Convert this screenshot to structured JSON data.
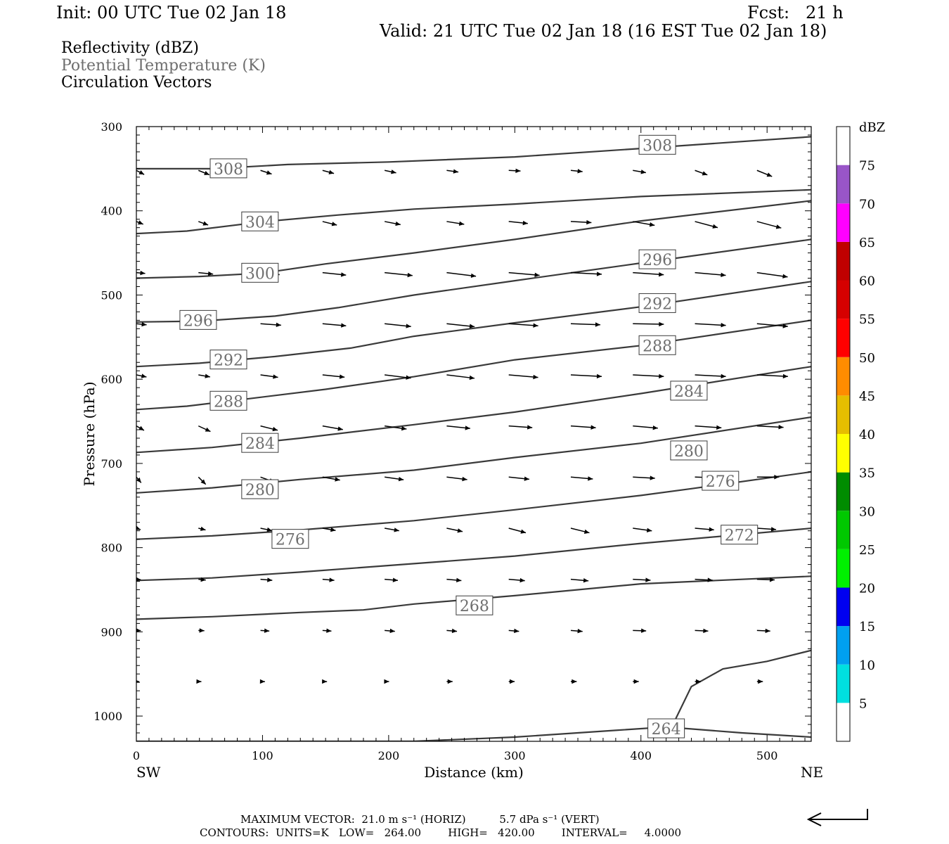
{
  "header": {
    "init": "Init: 00 UTC Tue 02 Jan 18",
    "fcst": "Fcst:   21 h",
    "valid": "Valid: 21 UTC Tue 02 Jan 18 (16 EST Tue 02 Jan 18)",
    "fields": [
      "Reflectivity (dBZ)",
      "Potential Temperature (K)",
      "Circulation Vectors"
    ]
  },
  "footer": {
    "max_vector": "MAXIMUM VECTOR:  21.0 m s⁻¹ (HORIZ)          5.7 dPa s⁻¹ (VERT)",
    "contours": "CONTOURS:  UNITS=K   LOW=   264.00        HIGH=   420.00        INTERVAL=     4.0000"
  },
  "colors": {
    "contour": "#3a3a3a",
    "vector": "#000000",
    "potential_temperature_label": "#6e6e6e"
  },
  "chart_data": {
    "type": "cross-section",
    "xlabel": "Distance (km)",
    "ylabel": "Pressure (hPa)",
    "x_endpoint_labels": {
      "left": "SW",
      "right": "NE"
    },
    "xlim": [
      0,
      535
    ],
    "ylim": [
      1030,
      300
    ],
    "xticks": [
      0,
      100,
      200,
      300,
      400,
      500
    ],
    "yticks": [
      300,
      400,
      500,
      600,
      700,
      800,
      900,
      1000
    ],
    "colorbar": {
      "title": "dBZ",
      "levels": [
        5,
        10,
        15,
        20,
        25,
        30,
        35,
        40,
        45,
        50,
        55,
        60,
        65,
        70,
        75
      ],
      "colors": [
        "#ffffff",
        "#00e0e0",
        "#00a0f0",
        "#0000f0",
        "#00f000",
        "#00c800",
        "#008c00",
        "#ffff00",
        "#e6be00",
        "#ff8c00",
        "#ff0000",
        "#d60000",
        "#c00000",
        "#ff00ff",
        "#9955c8",
        "#ffffff"
      ]
    },
    "isentropes": [
      {
        "value": 308,
        "points": [
          [
            0,
            350
          ],
          [
            60,
            350
          ],
          [
            120,
            345
          ],
          [
            200,
            342
          ],
          [
            300,
            336
          ],
          [
            400,
            326
          ],
          [
            535,
            312
          ]
        ],
        "labels": [
          [
            73,
            350
          ],
          [
            413,
            322
          ]
        ]
      },
      {
        "value": 304,
        "points": [
          [
            0,
            427
          ],
          [
            40,
            424
          ],
          [
            100,
            413
          ],
          [
            160,
            405
          ],
          [
            220,
            398
          ],
          [
            300,
            392
          ],
          [
            400,
            383
          ],
          [
            535,
            375
          ]
        ],
        "labels": [
          [
            98,
            413
          ]
        ]
      },
      {
        "value": 300,
        "points": [
          [
            0,
            480
          ],
          [
            50,
            478
          ],
          [
            100,
            474
          ],
          [
            150,
            463
          ],
          [
            220,
            450
          ],
          [
            300,
            434
          ],
          [
            400,
            412
          ],
          [
            535,
            388
          ]
        ],
        "labels": [
          [
            98,
            474
          ]
        ]
      },
      {
        "value": 296,
        "points": [
          [
            0,
            532
          ],
          [
            50,
            531
          ],
          [
            110,
            525
          ],
          [
            160,
            515
          ],
          [
            220,
            500
          ],
          [
            300,
            483
          ],
          [
            400,
            462
          ],
          [
            535,
            434
          ]
        ],
        "labels": [
          [
            49,
            530
          ],
          [
            413,
            458
          ]
        ]
      },
      {
        "value": 292,
        "points": [
          [
            0,
            585
          ],
          [
            50,
            581
          ],
          [
            110,
            573
          ],
          [
            170,
            563
          ],
          [
            220,
            549
          ],
          [
            300,
            533
          ],
          [
            400,
            514
          ],
          [
            535,
            484
          ]
        ],
        "labels": [
          [
            73,
            577
          ],
          [
            413,
            510
          ]
        ]
      },
      {
        "value": 288,
        "points": [
          [
            0,
            636
          ],
          [
            40,
            632
          ],
          [
            90,
            623
          ],
          [
            150,
            612
          ],
          [
            220,
            597
          ],
          [
            300,
            577
          ],
          [
            400,
            560
          ],
          [
            535,
            530
          ]
        ],
        "labels": [
          [
            73,
            626
          ],
          [
            413,
            560
          ]
        ]
      },
      {
        "value": 284,
        "points": [
          [
            0,
            687
          ],
          [
            60,
            681
          ],
          [
            130,
            670
          ],
          [
            220,
            654
          ],
          [
            300,
            639
          ],
          [
            400,
            617
          ],
          [
            535,
            585
          ]
        ],
        "labels": [
          [
            98,
            676
          ],
          [
            438,
            614
          ]
        ]
      },
      {
        "value": 280,
        "points": [
          [
            0,
            735
          ],
          [
            60,
            729
          ],
          [
            130,
            719
          ],
          [
            220,
            708
          ],
          [
            300,
            693
          ],
          [
            400,
            676
          ],
          [
            535,
            645
          ]
        ],
        "labels": [
          [
            98,
            731
          ],
          [
            438,
            685
          ]
        ]
      },
      {
        "value": 276,
        "points": [
          [
            0,
            790
          ],
          [
            60,
            786
          ],
          [
            130,
            779
          ],
          [
            220,
            768
          ],
          [
            300,
            755
          ],
          [
            400,
            738
          ],
          [
            440,
            730
          ],
          [
            535,
            710
          ]
        ],
        "labels": [
          [
            122,
            790
          ],
          [
            463,
            721
          ]
        ]
      },
      {
        "value": 272,
        "points": [
          [
            0,
            839
          ],
          [
            60,
            836
          ],
          [
            130,
            829
          ],
          [
            220,
            819
          ],
          [
            300,
            810
          ],
          [
            400,
            795
          ],
          [
            535,
            777
          ]
        ],
        "labels": [
          [
            478,
            785
          ]
        ]
      },
      {
        "value": 268,
        "points": [
          [
            0,
            885
          ],
          [
            60,
            882
          ],
          [
            130,
            877
          ],
          [
            180,
            874
          ],
          [
            220,
            867
          ],
          [
            300,
            857
          ],
          [
            400,
            843
          ],
          [
            535,
            834
          ]
        ],
        "labels": [
          [
            268,
            869
          ]
        ]
      },
      {
        "value": 264,
        "points": [
          [
            0,
            1030
          ],
          [
            120,
            1030
          ],
          [
            220,
            1030
          ],
          [
            300,
            1025
          ],
          [
            380,
            1017
          ],
          [
            420,
            1013
          ],
          [
            480,
            1020
          ],
          [
            535,
            1025
          ]
        ],
        "labels": [
          [
            420,
            1015
          ]
        ]
      },
      {
        "value": 264,
        "points": [
          [
            427,
            1005
          ],
          [
            440,
            965
          ],
          [
            465,
            944
          ],
          [
            500,
            935
          ],
          [
            535,
            922
          ]
        ],
        "labels": []
      }
    ],
    "circulation_vectors": {
      "u": [
        [
          6,
          8,
          8,
          8,
          8,
          8,
          8,
          8,
          9,
          9,
          11,
          12
        ],
        [
          5,
          7,
          10,
          10,
          11,
          12,
          13,
          14,
          15,
          16,
          17,
          19
        ],
        [
          6,
          10,
          13,
          16,
          19,
          20,
          21,
          21,
          21,
          21,
          21,
          21
        ],
        [
          7,
          10,
          14,
          16,
          18,
          19,
          20,
          20,
          21,
          21,
          21,
          21
        ],
        [
          7,
          8,
          12,
          15,
          18,
          19,
          20,
          21,
          21,
          21,
          21,
          21
        ],
        [
          6,
          9,
          12,
          14,
          15,
          16,
          16,
          17,
          17,
          18,
          18,
          18
        ],
        [
          5,
          7,
          10,
          12,
          13,
          14,
          14,
          15,
          15,
          15,
          15,
          15
        ],
        [
          3,
          5,
          8,
          9,
          10,
          11,
          12,
          13,
          13,
          13,
          13,
          13
        ],
        [
          3,
          5,
          8,
          8,
          9,
          10,
          11,
          12,
          12,
          12,
          12,
          11
        ],
        [
          3,
          4,
          6,
          6,
          7,
          7,
          7,
          8,
          9,
          9,
          9,
          9
        ],
        [
          2,
          2,
          3,
          3,
          3,
          4,
          4,
          4,
          4,
          4,
          4,
          4
        ]
      ],
      "w_hint": "vectors tilt downward (descending motion) in the upper-left; near-horizontal elsewhere",
      "dir_deg": [
        [
          -28,
          -22,
          -18,
          -15,
          -12,
          -8,
          -3,
          -6,
          -10,
          -20,
          -22,
          -22
        ],
        [
          -22,
          -20,
          -18,
          -14,
          -11,
          -9,
          -6,
          -3,
          -10,
          -15,
          -15,
          -13
        ],
        [
          -5,
          -6,
          -6,
          -6,
          -6,
          -7,
          -5,
          -3,
          -4,
          -5,
          -8,
          -10
        ],
        [
          -6,
          -5,
          -4,
          -5,
          -6,
          -6,
          -4,
          -2,
          -1,
          -3,
          -5,
          -6
        ],
        [
          -12,
          -10,
          -8,
          -6,
          -7,
          -7,
          -5,
          -3,
          -3,
          -3,
          -3,
          -4
        ],
        [
          -30,
          -25,
          -14,
          -10,
          -8,
          -6,
          -4,
          -4,
          -5,
          -4,
          -3,
          -3
        ],
        [
          -50,
          -45,
          -20,
          -10,
          -8,
          -7,
          -6,
          -5,
          -3,
          -2,
          0,
          0
        ],
        [
          -20,
          -14,
          -12,
          -10,
          -10,
          -12,
          -15,
          -14,
          -8,
          -5,
          -4,
          -3
        ],
        [
          -6,
          -6,
          -5,
          -5,
          -5,
          -5,
          -5,
          -5,
          -3,
          -3,
          -2,
          -2
        ],
        [
          -3,
          -3,
          -4,
          -4,
          -5,
          -5,
          -5,
          -5,
          -2,
          -3,
          -3,
          -3
        ],
        [
          -2,
          -2,
          -1,
          -1,
          0,
          0,
          0,
          0,
          0,
          0,
          0,
          0
        ]
      ]
    }
  }
}
